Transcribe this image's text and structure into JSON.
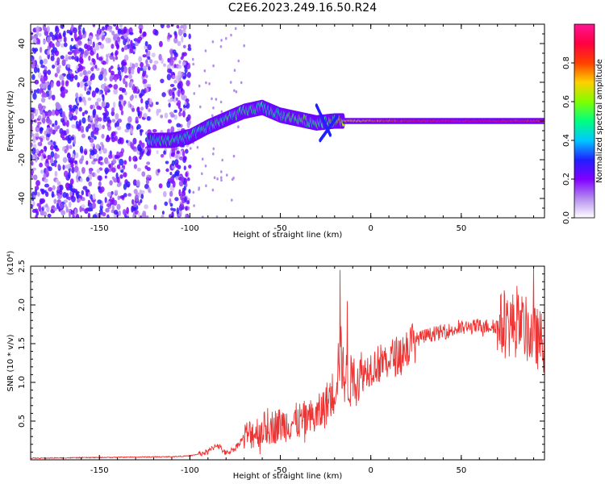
{
  "title": "C2E6.2023.249.16.50.R24",
  "chart_data": [
    {
      "type": "heatmap",
      "xlabel": "Height of straight line (km)",
      "ylabel": "Frequency (Hz)",
      "xlim": [
        -188,
        96
      ],
      "ylim": [
        -50,
        50
      ],
      "xticks": [
        -150,
        -100,
        -50,
        0,
        50
      ],
      "xtick_labels": [
        "-150",
        "-100",
        "-50",
        "0",
        "50"
      ],
      "yticks": [
        -40,
        -20,
        0,
        20,
        40
      ],
      "ytick_labels": [
        "-40",
        "-20",
        "0",
        "20",
        "40"
      ],
      "colorbar": {
        "label": "Normalized spectral amplitude",
        "range": [
          0,
          1
        ],
        "ticks": [
          0.0,
          0.2,
          0.4,
          0.6,
          0.8
        ],
        "tick_labels": [
          "0.0",
          "0.2",
          "0.4",
          "0.6",
          "0.8"
        ],
        "colors": [
          "#ffffff",
          "#b48cf0",
          "#8000ff",
          "#2020ff",
          "#00c8ff",
          "#00ff80",
          "#80ff00",
          "#ffd000",
          "#ff4000",
          "#ff0040",
          "#ff1493"
        ]
      },
      "signal_track": {
        "x": [
          -122,
          -110,
          -100,
          -90,
          -80,
          -70,
          -60,
          -50,
          -40,
          -30,
          -20,
          -15,
          0,
          20,
          50,
          96
        ],
        "freq": [
          -10,
          -10,
          -8,
          -3,
          1,
          5,
          7,
          3,
          1,
          -1,
          0,
          0,
          0,
          0,
          0,
          0
        ],
        "amplitude": [
          0.45,
          0.5,
          0.45,
          0.45,
          0.5,
          0.5,
          0.5,
          0.45,
          0.55,
          0.5,
          0.55,
          0.7,
          0.75,
          0.85,
          0.95,
          0.85
        ]
      },
      "noise_region": {
        "x_from": -188,
        "x_to": -100,
        "amplitude": 0.15
      }
    },
    {
      "type": "line",
      "xlabel": "Height of straight line (km)",
      "ylabel": "SNR (10 * v/v)",
      "scale_label": "(x10⁴)",
      "xlim": [
        -188,
        96
      ],
      "ylim": [
        0,
        2.5
      ],
      "xticks": [
        -150,
        -100,
        -50,
        0,
        50
      ],
      "xtick_labels": [
        "-150",
        "-100",
        "-50",
        "0",
        "50"
      ],
      "yticks": [
        0.5,
        1.0,
        1.5,
        2.0,
        2.5
      ],
      "ytick_labels": [
        "0.5",
        "1.0",
        "1.5",
        "2.0",
        "2.5"
      ],
      "series": [
        {
          "color": "#ee3333",
          "x": [
            -188,
            -150,
            -110,
            -100,
            -90,
            -85,
            -80,
            -75,
            -70,
            -60,
            -50,
            -40,
            -30,
            -25,
            -20,
            -17,
            -15,
            -12,
            -8,
            -5,
            0,
            5,
            10,
            15,
            20,
            25,
            30,
            40,
            50,
            60,
            70,
            80,
            85,
            90,
            96
          ],
          "y": [
            0.02,
            0.03,
            0.04,
            0.05,
            0.1,
            0.2,
            0.08,
            0.15,
            0.3,
            0.4,
            0.45,
            0.5,
            0.55,
            0.7,
            0.9,
            1.4,
            1.1,
            1.0,
            1.05,
            1.1,
            1.2,
            1.25,
            1.3,
            1.35,
            1.45,
            1.55,
            1.6,
            1.65,
            1.7,
            1.72,
            1.73,
            1.75,
            1.7,
            1.6,
            1.5
          ]
        }
      ],
      "peaks": [
        {
          "x": -17,
          "y": 2.45
        },
        {
          "x": -13,
          "y": 2.05
        },
        {
          "x": 90,
          "y": 2.5
        }
      ]
    }
  ]
}
